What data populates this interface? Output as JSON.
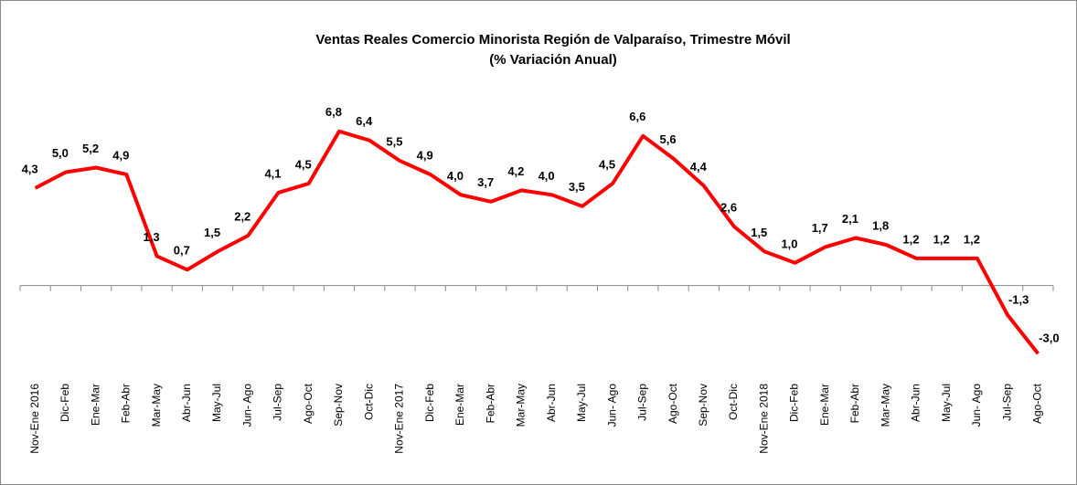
{
  "chart_data": {
    "type": "line",
    "title": "Ventas Reales Comercio Minorista  Región de Valparaíso, Trimestre Móvil",
    "subtitle": "(% Variación Anual)",
    "categories": [
      "Nov-Ene 2016",
      "Dic-Feb",
      "Ene-Mar",
      "Feb-Abr",
      "Mar-May",
      "Abr-Jun",
      "May-Jul",
      "Jun- Ago",
      "Jul-Sep",
      "Ago-Oct",
      "Sep-Nov",
      "Oct-Dic",
      "Nov-Ene 2017",
      "Dic-Feb",
      "Ene-Mar",
      "Feb-Abr",
      "Mar-May",
      "Abr-Jun",
      "May-Jul",
      "Jun- Ago",
      "Jul-Sep",
      "Ago-Oct",
      "Sep-Nov",
      "Oct-Dic",
      "Nov-Ene 2018",
      "Dic-Feb",
      "Ene-Mar",
      "Feb-Abr",
      "Mar-May",
      "Abr-Jun",
      "May-Jul",
      "Jun- Ago",
      "Jul-Sep",
      "Ago-Oct"
    ],
    "values": [
      4.3,
      5.0,
      5.2,
      4.9,
      1.3,
      0.7,
      1.5,
      2.2,
      4.1,
      4.5,
      6.8,
      6.4,
      5.5,
      4.9,
      4.0,
      3.7,
      4.2,
      4.0,
      3.5,
      4.5,
      6.6,
      5.6,
      4.4,
      2.6,
      1.5,
      1.0,
      1.7,
      2.1,
      1.8,
      1.2,
      1.2,
      1.2,
      -1.3,
      -3.0
    ],
    "value_labels": [
      "4,3",
      "5,0",
      "5,2",
      "4,9",
      "1,3",
      "0,7",
      "1,5",
      "2,2",
      "4,1",
      "4,5",
      "6,8",
      "6,4",
      "5,5",
      "4,9",
      "4,0",
      "3,7",
      "4,2",
      "4,0",
      "3,5",
      "4,5",
      "6,6",
      "5,6",
      "4,4",
      "2,6",
      "1,5",
      "1,0",
      "1,7",
      "2,1",
      "1,8",
      "1,2",
      "1,2",
      "1,2",
      "-1,3",
      "-3,0"
    ],
    "color": "#ff0000",
    "ylim": [
      -4,
      8
    ]
  }
}
